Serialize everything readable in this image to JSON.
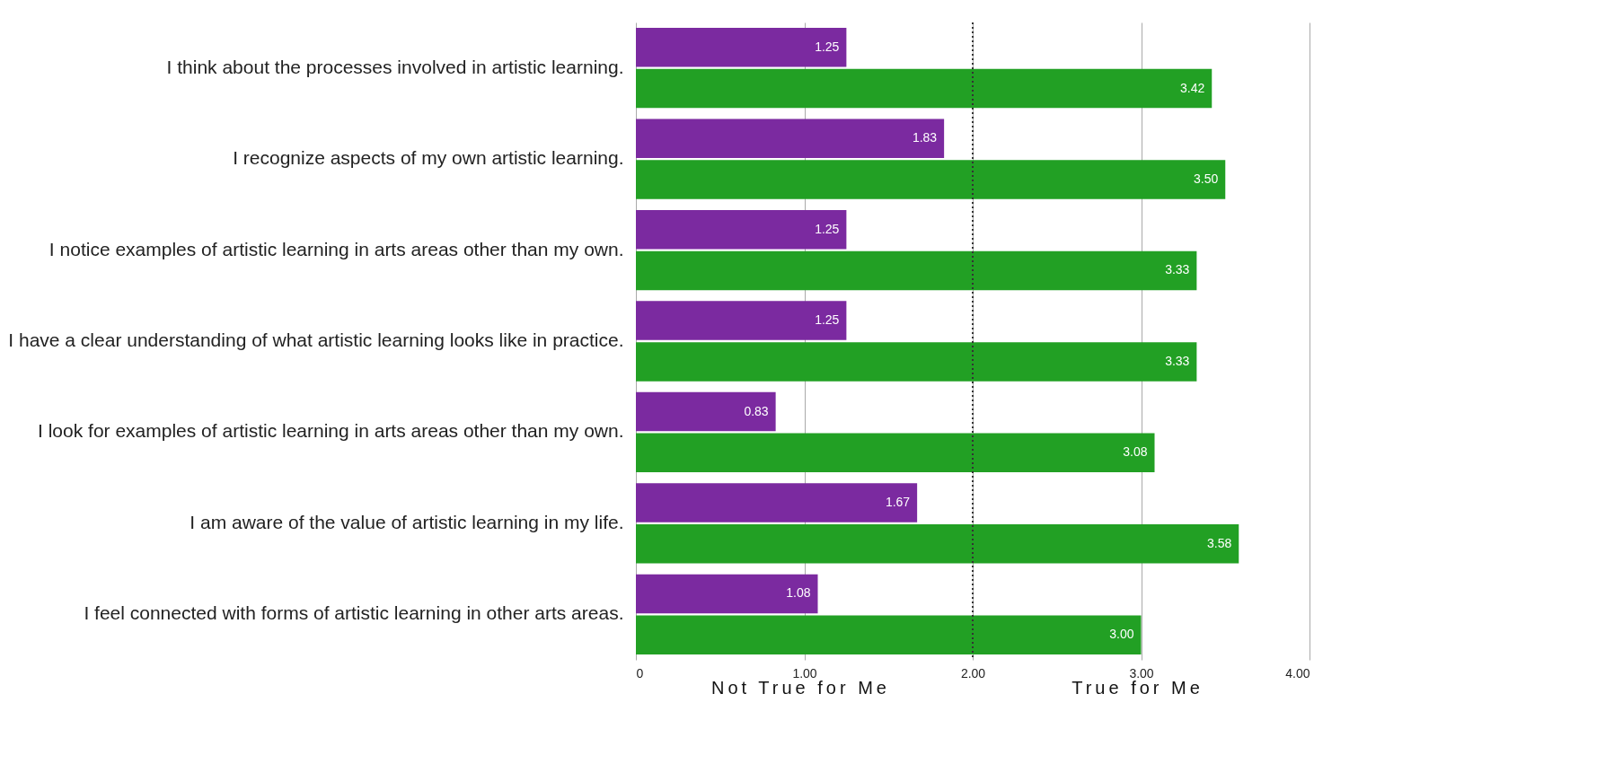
{
  "chart_data": {
    "type": "bar",
    "orientation": "horizontal",
    "categories": [
      "I think about the processes involved in artistic learning.",
      "I recognize aspects of my own artistic learning.",
      "I notice examples of artistic learning in arts areas other than my own.",
      "I have a clear understanding of what artistic learning looks like in practice.",
      "I look for examples of artistic learning in arts areas other than my own.",
      "I am aware of the value of artistic learning in my life.",
      "I feel connected with forms of artistic learning in other arts areas."
    ],
    "series": [
      {
        "color": "#7b2aa0",
        "values": [
          1.25,
          1.83,
          1.25,
          1.25,
          0.83,
          1.67,
          1.08
        ],
        "value_labels": [
          "1.25",
          "1.83",
          "1.25",
          "1.25",
          "0.83",
          "1.67",
          "1.08"
        ]
      },
      {
        "color": "#22a024",
        "values": [
          3.42,
          3.5,
          3.33,
          3.33,
          3.08,
          3.58,
          3.0
        ],
        "value_labels": [
          "3.42",
          "3.50",
          "3.33",
          "3.33",
          "3.08",
          "3.58",
          "3.00"
        ]
      }
    ],
    "xlim": [
      0,
      4
    ],
    "xticks": [
      0,
      {
        "value": 1,
        "label": "1.00"
      },
      {
        "value": 2,
        "label": "2.00"
      },
      {
        "value": 3,
        "label": "3.00"
      },
      {
        "value": 4,
        "label": "4.00"
      }
    ],
    "grid": "x",
    "legend": false,
    "ref_lines": [
      {
        "axis": "x",
        "value": 2,
        "label": null,
        "color": "#333333",
        "line_style": "dotted"
      }
    ],
    "annotations": [
      "Not True for Me",
      "True for Me"
    ]
  }
}
